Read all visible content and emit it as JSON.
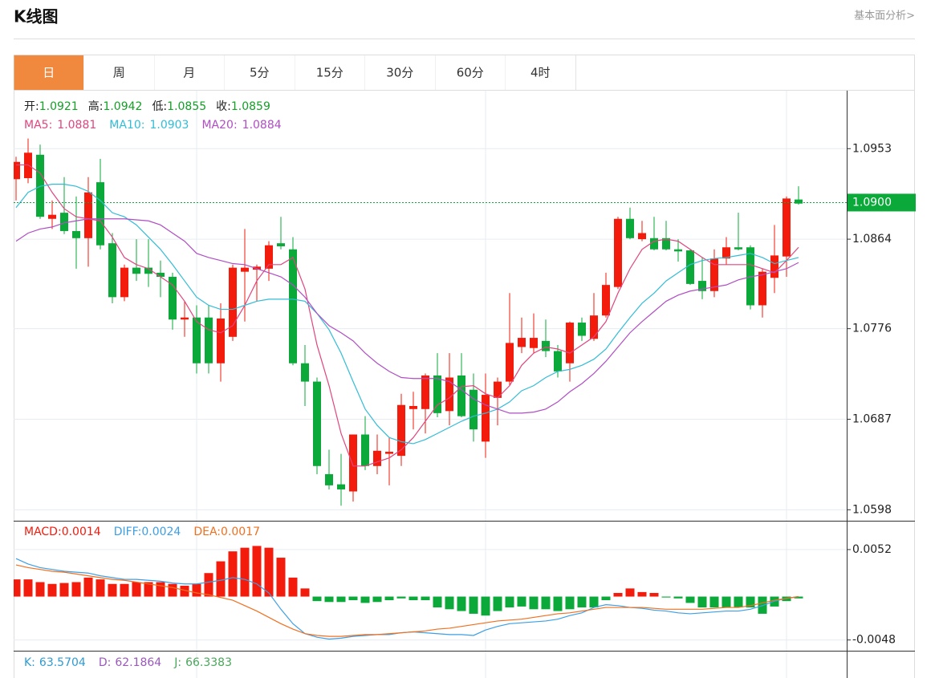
{
  "header": {
    "title": "K线图",
    "link": "基本面分析>"
  },
  "tabs": [
    "日",
    "周",
    "月",
    "5分",
    "15分",
    "30分",
    "60分",
    "4时"
  ],
  "active_tab": 0,
  "chart_data": [
    {
      "type": "candlestick",
      "ohlc_legend": [
        {
          "label": "开:",
          "value": 1.0921
        },
        {
          "label": "高:",
          "value": 1.0942
        },
        {
          "label": "低:",
          "value": 1.0855
        },
        {
          "label": "收:",
          "value": 1.0859
        }
      ],
      "legend_value_color": "#13a027",
      "up_color": "#f21b0c",
      "down_color": "#0aa93a",
      "open": [
        1.0923,
        1.0924,
        1.0947,
        1.0884,
        1.089,
        1.0872,
        1.0865,
        1.092,
        1.086,
        1.0807,
        1.0836,
        1.0836,
        1.0831,
        1.0827,
        1.0785,
        1.0787,
        1.0787,
        1.0742,
        1.0768,
        1.0832,
        1.0834,
        1.0835,
        1.086,
        1.0854,
        1.0742,
        1.0724,
        1.0633,
        1.0623,
        1.0616,
        1.0672,
        1.0641,
        1.0653,
        1.0651,
        1.0697,
        1.0697,
        1.073,
        1.0695,
        1.073,
        1.0716,
        1.0665,
        1.0708,
        1.0724,
        1.0758,
        1.0757,
        1.0764,
        1.0754,
        1.0742,
        1.0782,
        1.0766,
        1.0789,
        1.0817,
        1.0884,
        1.0864,
        1.0865,
        1.0865,
        1.0854,
        1.0853,
        1.0823,
        1.0813,
        1.0845,
        1.0856,
        1.0856,
        1.0799,
        1.0826,
        1.0847,
        1.0903
      ],
      "high": [
        1.0945,
        1.0963,
        1.0957,
        1.0902,
        1.0925,
        1.0906,
        1.0925,
        1.0943,
        1.087,
        1.0839,
        1.0864,
        1.0864,
        1.0843,
        1.0831,
        1.0803,
        1.0799,
        1.0799,
        1.0801,
        1.0839,
        1.0874,
        1.0839,
        1.0862,
        1.0886,
        1.0866,
        1.076,
        1.0728,
        1.0657,
        1.0653,
        1.0672,
        1.069,
        1.0672,
        1.0669,
        1.0712,
        1.0714,
        1.0732,
        1.0752,
        1.0752,
        1.0752,
        1.0732,
        1.0732,
        1.0728,
        1.0811,
        1.0787,
        1.0791,
        1.0785,
        1.076,
        1.0783,
        1.0787,
        1.0811,
        1.0831,
        1.0886,
        1.0895,
        1.0882,
        1.0886,
        1.0882,
        1.0864,
        1.0854,
        1.0846,
        1.0854,
        1.0866,
        1.089,
        1.0858,
        1.0835,
        1.0878,
        1.0906,
        1.0916
      ],
      "low": [
        1.0902,
        1.0919,
        1.0884,
        1.0874,
        1.0869,
        1.0835,
        1.0837,
        1.0854,
        1.0801,
        1.0803,
        1.0823,
        1.0817,
        1.0807,
        1.0775,
        1.0768,
        1.0732,
        1.0732,
        1.0724,
        1.0764,
        1.0783,
        1.0803,
        1.0823,
        1.0854,
        1.074,
        1.07,
        1.0633,
        1.0618,
        1.0602,
        1.0606,
        1.0637,
        1.0633,
        1.0622,
        1.0641,
        1.0677,
        1.0673,
        1.0689,
        1.0681,
        1.0689,
        1.0665,
        1.0649,
        1.0681,
        1.072,
        1.0752,
        1.0752,
        1.0748,
        1.0728,
        1.0724,
        1.0764,
        1.0764,
        1.0787,
        1.0815,
        1.0864,
        1.0862,
        1.0853,
        1.0853,
        1.0842,
        1.0819,
        1.0805,
        1.0807,
        1.0839,
        1.0853,
        1.0795,
        1.0787,
        1.0811,
        1.0827,
        1.0898
      ],
      "close": [
        1.094,
        1.0949,
        1.0886,
        1.0888,
        1.0872,
        1.0865,
        1.091,
        1.0858,
        1.0807,
        1.0836,
        1.083,
        1.083,
        1.0827,
        1.0785,
        1.0787,
        1.0742,
        1.0742,
        1.0786,
        1.0836,
        1.0836,
        1.0837,
        1.0858,
        1.0857,
        1.0742,
        1.0724,
        1.0641,
        1.0622,
        1.0618,
        1.0672,
        1.0641,
        1.0656,
        1.0655,
        1.0701,
        1.07,
        1.073,
        1.0693,
        1.0728,
        1.069,
        1.0677,
        1.0711,
        1.0724,
        1.0762,
        1.0767,
        1.0767,
        1.0754,
        1.0734,
        1.0782,
        1.0769,
        1.0789,
        1.0819,
        1.0884,
        1.0865,
        1.087,
        1.0854,
        1.0854,
        1.0852,
        1.082,
        1.0813,
        1.0845,
        1.0856,
        1.0854,
        1.0799,
        1.0832,
        1.0848,
        1.0904,
        1.0899
      ],
      "series": [
        {
          "name": "MA5:",
          "legend_value": 1.0881,
          "color": "#e0457f",
          "values": [
            1.0937,
            1.0937,
            1.0929,
            1.091,
            1.0894,
            1.0886,
            1.0884,
            1.0882,
            1.0866,
            1.0846,
            1.0839,
            1.0835,
            1.0827,
            1.0819,
            1.0803,
            1.0783,
            1.0775,
            1.0772,
            1.0779,
            1.0799,
            1.0823,
            1.0839,
            1.0839,
            1.0846,
            1.0815,
            1.076,
            1.072,
            1.0673,
            1.0641,
            1.0641,
            1.0645,
            1.0649,
            1.0657,
            1.0669,
            1.0685,
            1.0701,
            1.0708,
            1.0719,
            1.072,
            1.0712,
            1.0708,
            1.072,
            1.074,
            1.0752,
            1.0758,
            1.0756,
            1.0752,
            1.076,
            1.0768,
            1.0783,
            1.0811,
            1.0835,
            1.0854,
            1.0862,
            1.0864,
            1.0862,
            1.0854,
            1.0846,
            1.0839,
            1.0839,
            1.0839,
            1.0839,
            1.0835,
            1.0831,
            1.0843,
            1.0856
          ]
        },
        {
          "name": "MA10:",
          "legend_value": 1.0903,
          "color": "#33bcd6",
          "values": [
            1.0895,
            1.091,
            1.0916,
            1.0918,
            1.0918,
            1.0916,
            1.0911,
            1.0902,
            1.089,
            1.0886,
            1.0878,
            1.0866,
            1.0854,
            1.0839,
            1.0823,
            1.0807,
            1.0799,
            1.0795,
            1.0795,
            1.0799,
            1.0803,
            1.0805,
            1.0805,
            1.0805,
            1.0803,
            1.0791,
            1.0775,
            1.0752,
            1.0724,
            1.0697,
            1.0681,
            1.0669,
            1.0665,
            1.0663,
            1.0667,
            1.0673,
            1.0679,
            1.0685,
            1.069,
            1.0693,
            1.0697,
            1.0704,
            1.0715,
            1.072,
            1.0728,
            1.0734,
            1.0736,
            1.074,
            1.0746,
            1.0756,
            1.0772,
            1.0787,
            1.0801,
            1.0811,
            1.0823,
            1.0831,
            1.0839,
            1.0843,
            1.0845,
            1.0846,
            1.0848,
            1.085,
            1.0846,
            1.084,
            1.0843,
            1.0846
          ]
        },
        {
          "name": "MA20:",
          "legend_value": 1.0884,
          "color": "#b04ec4",
          "values": [
            1.0862,
            1.087,
            1.0874,
            1.0876,
            1.088,
            1.0882,
            1.0884,
            1.0884,
            1.0884,
            1.0884,
            1.0883,
            1.0882,
            1.0878,
            1.087,
            1.0862,
            1.085,
            1.0846,
            1.0843,
            1.084,
            1.0839,
            1.0835,
            1.0831,
            1.0827,
            1.0819,
            1.0807,
            1.0791,
            1.0779,
            1.0772,
            1.0764,
            1.0752,
            1.0742,
            1.0734,
            1.0728,
            1.0727,
            1.0727,
            1.0727,
            1.0724,
            1.0716,
            1.0707,
            1.0701,
            1.0697,
            1.0693,
            1.0693,
            1.0694,
            1.0697,
            1.0704,
            1.0714,
            1.0722,
            1.0732,
            1.0744,
            1.0758,
            1.0772,
            1.0783,
            1.0793,
            1.0803,
            1.0809,
            1.0813,
            1.0815,
            1.0817,
            1.0819,
            1.0824,
            1.0827,
            1.0829,
            1.0832,
            1.0835,
            1.0841
          ]
        }
      ],
      "ylim": [
        1.0588,
        1.101
      ],
      "yticks": [
        1.0953,
        1.0864,
        1.0776,
        1.0687,
        1.0598
      ],
      "price_marker": {
        "value": 1.09,
        "label": "1.0900",
        "color": "#0aa93a"
      },
      "grid": true
    },
    {
      "type": "macd",
      "up_color": "#f21b0c",
      "down_color": "#0aa93a",
      "series": [
        {
          "name": "MACD:",
          "legend_value": 0.0014,
          "color": "#f21b0c",
          "kind": "bar",
          "values": [
            0.0019,
            0.0019,
            0.0016,
            0.0014,
            0.0015,
            0.0016,
            0.0021,
            0.0019,
            0.0014,
            0.0014,
            0.0016,
            0.0016,
            0.0016,
            0.0014,
            0.0012,
            0.0014,
            0.0026,
            0.0039,
            0.005,
            0.0054,
            0.0056,
            0.0054,
            0.0043,
            0.0021,
            0.0009,
            -0.0005,
            -0.0006,
            -0.0006,
            -0.0004,
            -0.0007,
            -0.0006,
            -0.0004,
            -0.0002,
            -0.0004,
            -0.0004,
            -0.0012,
            -0.0014,
            -0.0016,
            -0.0019,
            -0.0021,
            -0.0016,
            -0.0012,
            -0.0011,
            -0.0014,
            -0.0014,
            -0.0016,
            -0.0014,
            -0.0012,
            -0.0012,
            -0.0004,
            0.0004,
            0.0009,
            0.0005,
            0.0004,
            -0.0001,
            -0.0002,
            -0.0007,
            -0.0012,
            -0.0012,
            -0.0012,
            -0.0012,
            -0.0012,
            -0.0019,
            -0.0011,
            -0.0005,
            -0.0002
          ]
        },
        {
          "name": "DIFF:",
          "legend_value": 0.0024,
          "color": "#3d9fe6",
          "kind": "line",
          "values": [
            0.0042,
            0.0036,
            0.0032,
            0.003,
            0.0028,
            0.0027,
            0.0026,
            0.0023,
            0.0021,
            0.0019,
            0.0019,
            0.0018,
            0.0017,
            0.0015,
            0.0014,
            0.0014,
            0.0016,
            0.0018,
            0.0021,
            0.0019,
            0.0014,
            0.0004,
            -0.0014,
            -0.003,
            -0.0041,
            -0.0045,
            -0.0047,
            -0.0046,
            -0.0044,
            -0.0043,
            -0.0042,
            -0.0042,
            -0.004,
            -0.0039,
            -0.004,
            -0.0041,
            -0.0042,
            -0.0042,
            -0.0043,
            -0.0037,
            -0.0033,
            -0.003,
            -0.0029,
            -0.0028,
            -0.0027,
            -0.0025,
            -0.0021,
            -0.0018,
            -0.0012,
            -0.0009,
            -0.001,
            -0.0012,
            -0.0013,
            -0.0015,
            -0.0016,
            -0.0018,
            -0.0019,
            -0.0018,
            -0.0017,
            -0.0016,
            -0.0016,
            -0.0014,
            -0.001,
            -0.0005,
            -0.0002,
            0
          ]
        },
        {
          "name": "DEA:",
          "legend_value": 0.0017,
          "color": "#f07020",
          "kind": "line",
          "values": [
            0.0035,
            0.0032,
            0.003,
            0.0028,
            0.0027,
            0.0025,
            0.0023,
            0.0021,
            0.0019,
            0.0018,
            0.0016,
            0.0014,
            0.0012,
            0.001,
            0.0007,
            0.0004,
            0.0002,
            -0.0001,
            -0.0004,
            -0.001,
            -0.0016,
            -0.0023,
            -0.003,
            -0.0036,
            -0.0041,
            -0.0043,
            -0.0044,
            -0.0044,
            -0.0043,
            -0.0042,
            -0.0042,
            -0.0041,
            -0.004,
            -0.0039,
            -0.0038,
            -0.0036,
            -0.0035,
            -0.0033,
            -0.0031,
            -0.0029,
            -0.0027,
            -0.0026,
            -0.0025,
            -0.0023,
            -0.0021,
            -0.0019,
            -0.0018,
            -0.0016,
            -0.0014,
            -0.0012,
            -0.0012,
            -0.0012,
            -0.0012,
            -0.0013,
            -0.0014,
            -0.0014,
            -0.0014,
            -0.0014,
            -0.0013,
            -0.0012,
            -0.0012,
            -0.001,
            -0.0007,
            -0.0004,
            -0.0002,
            0
          ]
        }
      ],
      "ylim": [
        -0.0059,
        0.0083
      ],
      "yticks": [
        0.0052,
        -0.0048
      ],
      "grid": true
    },
    {
      "type": "kdj",
      "series": [
        {
          "name": "K:",
          "legend_value": 63.5704,
          "color": "#2f9bd3"
        },
        {
          "name": "D:",
          "legend_value": 62.1864,
          "color": "#9a59bd"
        },
        {
          "name": "J:",
          "legend_value": 66.3383,
          "color": "#4aa85a"
        }
      ]
    }
  ]
}
